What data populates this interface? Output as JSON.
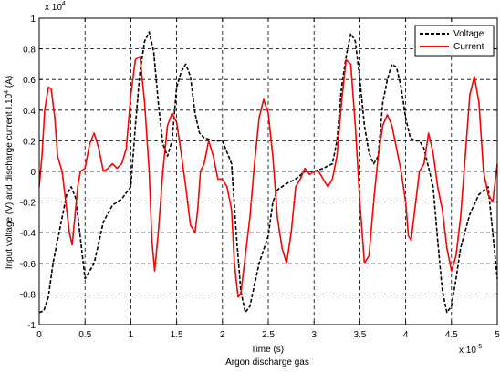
{
  "chart_data": {
    "type": "line",
    "title": "",
    "xlabel": "Time (s)",
    "caption": "Argon discharge gas",
    "ylabel": "Input voltage (V) and discharge current I.10",
    "ylabel_exp": "4",
    "ylabel_unit": " (A)",
    "x_multiplier": "x 10",
    "x_multiplier_exp": "-5",
    "y_multiplier": "x 10",
    "y_multiplier_exp": "4",
    "xlim": [
      0,
      5
    ],
    "ylim": [
      -1,
      1
    ],
    "grid": true,
    "grid_style": "dashed",
    "legend_position": "top-right",
    "xticks": [
      0,
      0.5,
      1,
      1.5,
      2,
      2.5,
      3,
      3.5,
      4,
      4.5,
      5
    ],
    "xtick_labels": [
      "0",
      "0.5",
      "1",
      "1.5",
      "2",
      "2.5",
      "3",
      "3.5",
      "4",
      "4.5",
      "5"
    ],
    "yticks": [
      -1,
      -0.8,
      -0.6,
      -0.4,
      -0.2,
      0,
      0.2,
      0.4,
      0.6,
      0.8,
      1
    ],
    "ytick_labels": [
      "-1",
      "-0.8",
      "-0.6",
      "-0.4",
      "-0.2",
      "0",
      "0.2",
      "0.4",
      "0.6",
      "0.8",
      "1"
    ],
    "series": [
      {
        "name": "Voltage",
        "color": "#000000",
        "style": "dashed",
        "x": [
          0,
          0.05,
          0.1,
          0.15,
          0.2,
          0.3,
          0.35,
          0.4,
          0.5,
          0.6,
          0.7,
          0.8,
          0.9,
          1.0,
          1.05,
          1.1,
          1.15,
          1.2,
          1.25,
          1.3,
          1.35,
          1.4,
          1.45,
          1.5,
          1.55,
          1.6,
          1.65,
          1.7,
          1.75,
          1.8,
          1.9,
          2.0,
          2.1,
          2.15,
          2.2,
          2.25,
          2.3,
          2.4,
          2.5,
          2.55,
          2.6,
          2.7,
          2.8,
          2.9,
          3.0,
          3.1,
          3.2,
          3.25,
          3.3,
          3.35,
          3.4,
          3.45,
          3.5,
          3.55,
          3.6,
          3.65,
          3.7,
          3.75,
          3.8,
          3.85,
          3.9,
          3.95,
          4.0,
          4.05,
          4.1,
          4.15,
          4.2,
          4.3,
          4.35,
          4.4,
          4.45,
          4.5,
          4.55,
          4.6,
          4.7,
          4.8,
          4.9,
          5.0
        ],
        "y": [
          -0.92,
          -0.91,
          -0.82,
          -0.6,
          -0.45,
          -0.15,
          -0.1,
          -0.18,
          -0.7,
          -0.6,
          -0.33,
          -0.22,
          -0.18,
          -0.1,
          0.3,
          0.65,
          0.85,
          0.91,
          0.78,
          0.45,
          0.18,
          0.1,
          0.2,
          0.55,
          0.65,
          0.7,
          0.62,
          0.38,
          0.25,
          0.22,
          0.2,
          0.2,
          0.05,
          -0.4,
          -0.78,
          -0.92,
          -0.88,
          -0.6,
          -0.42,
          -0.2,
          -0.12,
          -0.08,
          -0.05,
          0.0,
          0.0,
          0.02,
          0.05,
          0.2,
          0.55,
          0.75,
          0.9,
          0.85,
          0.6,
          0.3,
          0.12,
          0.05,
          0.1,
          0.45,
          0.6,
          0.7,
          0.68,
          0.55,
          0.35,
          0.22,
          0.2,
          0.2,
          0.15,
          -0.1,
          -0.45,
          -0.78,
          -0.92,
          -0.88,
          -0.7,
          -0.5,
          -0.28,
          -0.15,
          -0.1,
          -0.7
        ]
      },
      {
        "name": "Current",
        "color": "#ff0000",
        "style": "solid",
        "x": [
          0,
          0.03,
          0.06,
          0.1,
          0.13,
          0.17,
          0.2,
          0.25,
          0.3,
          0.33,
          0.36,
          0.38,
          0.42,
          0.45,
          0.5,
          0.55,
          0.6,
          0.65,
          0.7,
          0.75,
          0.8,
          0.85,
          0.9,
          0.95,
          1.0,
          1.05,
          1.1,
          1.15,
          1.2,
          1.23,
          1.26,
          1.3,
          1.35,
          1.4,
          1.45,
          1.5,
          1.55,
          1.6,
          1.65,
          1.7,
          1.73,
          1.76,
          1.8,
          1.85,
          1.9,
          1.95,
          2.0,
          2.05,
          2.1,
          2.13,
          2.17,
          2.2,
          2.25,
          2.3,
          2.35,
          2.4,
          2.45,
          2.5,
          2.55,
          2.6,
          2.65,
          2.7,
          2.75,
          2.8,
          2.85,
          2.9,
          2.95,
          3.0,
          3.05,
          3.1,
          3.15,
          3.2,
          3.25,
          3.3,
          3.35,
          3.4,
          3.45,
          3.5,
          3.55,
          3.6,
          3.65,
          3.7,
          3.75,
          3.8,
          3.85,
          3.9,
          3.95,
          4.0,
          4.03,
          4.06,
          4.1,
          4.15,
          4.2,
          4.25,
          4.3,
          4.35,
          4.4,
          4.45,
          4.5,
          4.55,
          4.6,
          4.65,
          4.7,
          4.75,
          4.8,
          4.85,
          4.9,
          4.95,
          5.0
        ],
        "y": [
          -0.1,
          0.1,
          0.4,
          0.55,
          0.54,
          0.35,
          0.1,
          0.0,
          -0.25,
          -0.4,
          -0.48,
          -0.35,
          -0.1,
          0.0,
          0.02,
          0.18,
          0.25,
          0.15,
          0.0,
          0.02,
          0.05,
          0.02,
          0.05,
          0.15,
          0.5,
          0.73,
          0.75,
          0.45,
          0.0,
          -0.45,
          -0.65,
          -0.4,
          0.0,
          0.3,
          0.38,
          0.32,
          0.12,
          -0.1,
          -0.35,
          -0.4,
          -0.25,
          0.0,
          0.05,
          0.2,
          0.1,
          -0.05,
          -0.05,
          -0.1,
          -0.25,
          -0.6,
          -0.82,
          -0.8,
          -0.55,
          -0.3,
          0.05,
          0.35,
          0.47,
          0.38,
          0.1,
          -0.3,
          -0.5,
          -0.6,
          -0.4,
          -0.1,
          -0.05,
          0.02,
          -0.02,
          0.0,
          0.0,
          -0.05,
          -0.1,
          -0.05,
          0.1,
          0.45,
          0.73,
          0.7,
          0.3,
          -0.2,
          -0.6,
          -0.55,
          -0.2,
          0.1,
          0.3,
          0.37,
          0.3,
          0.15,
          0.0,
          -0.2,
          -0.42,
          -0.45,
          -0.25,
          0.0,
          0.05,
          0.25,
          0.12,
          -0.1,
          -0.25,
          -0.5,
          -0.65,
          -0.55,
          -0.3,
          0.1,
          0.5,
          0.62,
          0.45,
          0.0,
          -0.15,
          -0.2,
          0.05
        ]
      }
    ]
  }
}
